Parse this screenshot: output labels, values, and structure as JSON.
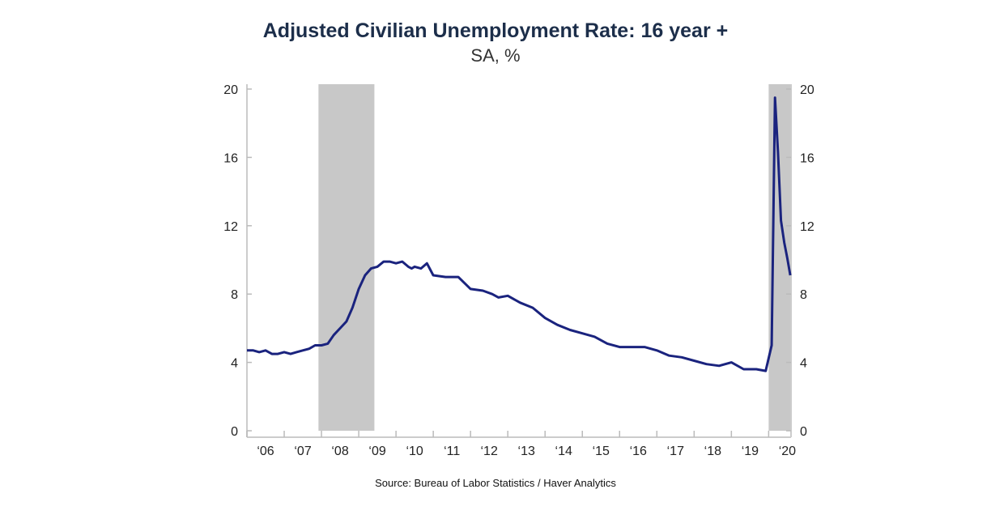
{
  "chart_data": {
    "type": "line",
    "title": "Adjusted Civilian Unemployment Rate: 16 year +",
    "subtitle": "SA, %",
    "source": "Source: Bureau of Labor Statistics / Haver Analytics",
    "ylim": [
      0,
      20
    ],
    "yticks": [
      "0",
      "4",
      "8",
      "12",
      "16",
      "20"
    ],
    "xlim": [
      2006.0,
      2020.6
    ],
    "xticks": [
      {
        "label": "'06",
        "x": 2006.5
      },
      {
        "label": "'07",
        "x": 2007.5
      },
      {
        "label": "'08",
        "x": 2008.5
      },
      {
        "label": "'09",
        "x": 2009.5
      },
      {
        "label": "'10",
        "x": 2010.5
      },
      {
        "label": "'11",
        "x": 2011.5
      },
      {
        "label": "'12",
        "x": 2012.5
      },
      {
        "label": "'13",
        "x": 2013.5
      },
      {
        "label": "'14",
        "x": 2014.5
      },
      {
        "label": "'15",
        "x": 2015.5
      },
      {
        "label": "'16",
        "x": 2016.5
      },
      {
        "label": "'17",
        "x": 2017.5
      },
      {
        "label": "'18",
        "x": 2018.5
      },
      {
        "label": "'19",
        "x": 2019.5
      },
      {
        "label": "'20",
        "x": 2020.5
      }
    ],
    "recessions": [
      [
        2007.92,
        2009.42
      ],
      [
        2020.0,
        2020.58
      ]
    ],
    "colors": {
      "line": "#1a237e",
      "recession": "#c8c8c8",
      "axis": "#cccccc",
      "title": "#1c2e4a"
    },
    "series": [
      {
        "x": [
          2006.0,
          2006.17,
          2006.33,
          2006.5,
          2006.67,
          2006.83,
          2007.0,
          2007.17,
          2007.33,
          2007.5,
          2007.67,
          2007.83,
          2008.0,
          2008.17,
          2008.33,
          2008.5,
          2008.67,
          2008.83,
          2009.0,
          2009.17,
          2009.33,
          2009.5,
          2009.67,
          2009.83,
          2010.0,
          2010.17,
          2010.33,
          2010.42,
          2010.5,
          2010.67,
          2010.83,
          2011.0,
          2011.33,
          2011.67,
          2012.0,
          2012.33,
          2012.58,
          2012.75,
          2013.0,
          2013.33,
          2013.67,
          2014.0,
          2014.33,
          2014.67,
          2015.0,
          2015.33,
          2015.67,
          2016.0,
          2016.33,
          2016.67,
          2017.0,
          2017.33,
          2017.67,
          2018.0,
          2018.33,
          2018.67,
          2019.0,
          2019.33,
          2019.67,
          2019.92,
          2020.08,
          2020.17,
          2020.25,
          2020.33,
          2020.42,
          2020.5,
          2020.58
        ],
        "y": [
          4.7,
          4.7,
          4.6,
          4.7,
          4.5,
          4.5,
          4.6,
          4.5,
          4.6,
          4.7,
          4.8,
          5.0,
          5.0,
          5.1,
          5.6,
          6.0,
          6.4,
          7.2,
          8.3,
          9.1,
          9.5,
          9.6,
          9.9,
          9.9,
          9.8,
          9.9,
          9.6,
          9.5,
          9.6,
          9.5,
          9.8,
          9.1,
          9.0,
          9.0,
          8.3,
          8.2,
          8.0,
          7.8,
          7.9,
          7.5,
          7.2,
          6.6,
          6.2,
          5.9,
          5.7,
          5.5,
          5.1,
          4.9,
          4.9,
          4.9,
          4.7,
          4.4,
          4.3,
          4.1,
          3.9,
          3.8,
          4.0,
          3.6,
          3.6,
          3.5,
          5.0,
          19.5,
          16.3,
          12.3,
          11.0,
          10.1,
          9.1
        ]
      }
    ]
  }
}
